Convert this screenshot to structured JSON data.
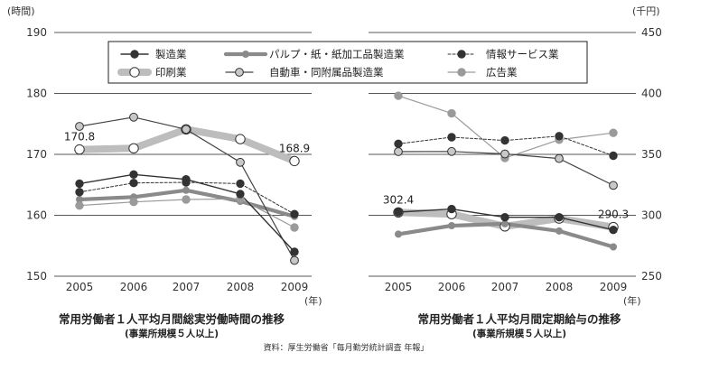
{
  "chart_data": [
    {
      "type": "line",
      "title": "常用労働者１人平均月間総実労働時間の推移",
      "subtitle": "(事業所規模５人以上)",
      "unit_label": "(時間)",
      "x_unit_label": "(年)",
      "categories": [
        "2005",
        "2006",
        "2007",
        "2008",
        "2009"
      ],
      "ylim": [
        150,
        190
      ],
      "yticks": [
        150,
        160,
        170,
        180,
        190
      ],
      "grid": true,
      "series": [
        {
          "name": "製造業",
          "values": [
            165.2,
            166.7,
            165.9,
            163.5,
            154.0
          ]
        },
        {
          "name": "パルプ・紙・紙加工品製造業",
          "values": [
            162.6,
            163.0,
            164.1,
            162.3,
            159.8
          ]
        },
        {
          "name": "情報サービス業",
          "values": [
            163.8,
            165.3,
            165.4,
            165.2,
            160.2
          ]
        },
        {
          "name": "印刷業",
          "values": [
            170.8,
            171.0,
            174.1,
            172.5,
            168.9
          ]
        },
        {
          "name": "自動車・同附属品製造業",
          "values": [
            174.6,
            176.1,
            174.1,
            168.7,
            152.6
          ]
        },
        {
          "name": "広告業",
          "values": [
            161.6,
            162.2,
            162.6,
            162.7,
            158.0
          ]
        }
      ],
      "data_labels": [
        {
          "text": "170.8",
          "series": "印刷業",
          "category": "2005"
        },
        {
          "text": "168.9",
          "series": "印刷業",
          "category": "2009"
        }
      ]
    },
    {
      "type": "line",
      "title": "常用労働者１人平均月間定期給与の推移",
      "subtitle": "(事業所規模５人以上)",
      "unit_label": "(千円)",
      "x_unit_label": "(年)",
      "categories": [
        "2005",
        "2006",
        "2007",
        "2008",
        "2009"
      ],
      "ylim": [
        250,
        450
      ],
      "yticks": [
        250,
        300,
        350,
        400,
        450
      ],
      "grid": true,
      "series": [
        {
          "name": "製造業",
          "values": [
            302.6,
            305.1,
            298.4,
            298.4,
            288.0
          ]
        },
        {
          "name": "パルプ・紙・紙加工品製造業",
          "values": [
            284.5,
            291.5,
            293.0,
            287.1,
            274.1
          ]
        },
        {
          "name": "情報サービス業",
          "values": [
            358.7,
            364.1,
            361.4,
            365.0,
            348.9
          ]
        },
        {
          "name": "印刷業",
          "values": [
            302.4,
            301.0,
            290.9,
            297.3,
            290.3
          ]
        },
        {
          "name": "自動車・同附属品製造業",
          "values": [
            352.2,
            352.4,
            350.4,
            346.6,
            324.5
          ]
        },
        {
          "name": "広告業",
          "values": [
            398.1,
            383.6,
            347.0,
            362.0,
            367.6
          ]
        }
      ],
      "data_labels": [
        {
          "text": "302.4",
          "series": "印刷業",
          "category": "2005"
        },
        {
          "text": "290.3",
          "series": "印刷業",
          "category": "2009"
        }
      ]
    }
  ],
  "legend": [
    {
      "name": "製造業",
      "color": "#333333",
      "style": "thin-solid",
      "marker": "dark"
    },
    {
      "name": "パルプ・紙・紙加工品製造業",
      "color": "#8a8a8a",
      "style": "thick-solid",
      "marker": "gray"
    },
    {
      "name": "情報サービス業",
      "color": "#333333",
      "style": "dashed",
      "marker": "dark"
    },
    {
      "name": "印刷業",
      "color": "#bdbdbd",
      "style": "very-thick",
      "marker": "white"
    },
    {
      "name": "自動車・同附属品製造業",
      "color": "#444444",
      "style": "thin-solid",
      "marker": "light"
    },
    {
      "name": "広告業",
      "color": "#9a9a9a",
      "style": "thin-solid",
      "marker": "gray"
    }
  ],
  "source": "資料：厚生労働省「毎月勤労統計調査 年報」"
}
